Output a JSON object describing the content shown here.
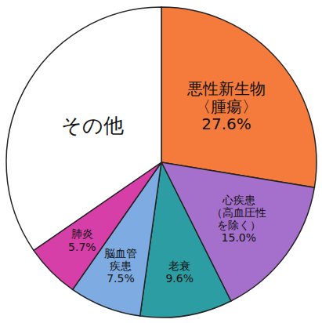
{
  "chart_data": {
    "type": "pie",
    "categories": [
      "悪性新生物〈腫瘍〉",
      "心疾患（高血圧性を除く）",
      "老衰",
      "脳血管疾患",
      "肺炎",
      "その他"
    ],
    "values": [
      27.6,
      15.0,
      9.6,
      7.5,
      5.7,
      34.6
    ],
    "value_labels": [
      "27.6%",
      "15.0%",
      "9.6%",
      "7.5%",
      "5.7%",
      null
    ],
    "colors": [
      "#f47b3c",
      "#a56fcc",
      "#2c9ea3",
      "#7eabe2",
      "#d63ea8",
      "#ffffff"
    ],
    "data_labels": true
  }
}
